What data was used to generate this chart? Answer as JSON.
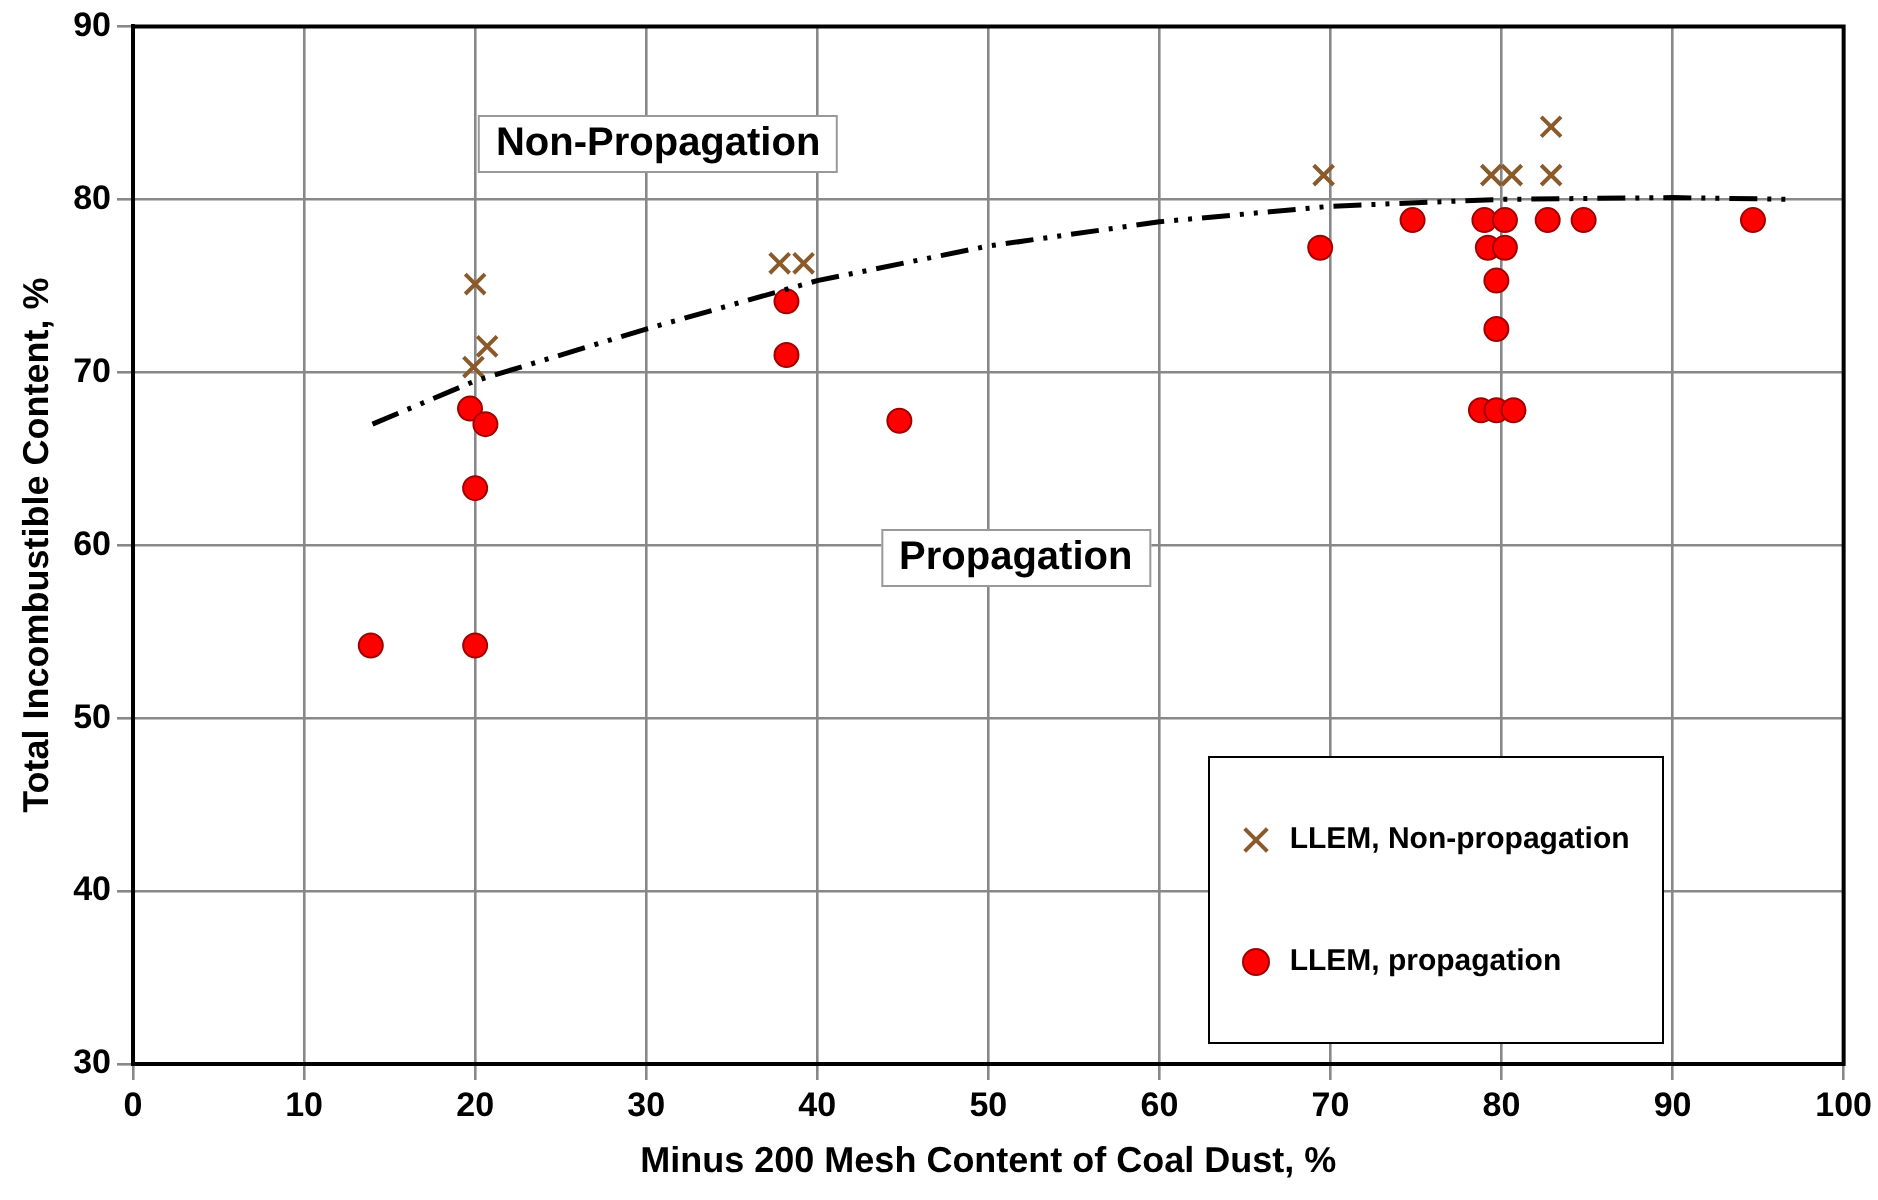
{
  "chart_data": {
    "type": "scatter",
    "xlabel": "Minus 200 Mesh Content of Coal Dust, %",
    "ylabel": "Total Incombustible Content, %",
    "xlim": [
      0,
      100
    ],
    "xticks": [
      0,
      10,
      20,
      30,
      40,
      50,
      60,
      70,
      80,
      90,
      100
    ],
    "ylim": [
      30,
      90
    ],
    "yticks": [
      30,
      40,
      50,
      60,
      70,
      80,
      90
    ],
    "grid": true,
    "legend": "bottom right",
    "annotations": [
      "Non-Propagation",
      "Propagation"
    ],
    "series": [
      {
        "type": "line",
        "color": "#000000",
        "line_style": "dashed",
        "marker": "none",
        "x": [
          14,
          20,
          30,
          40,
          50,
          60,
          70,
          80,
          90,
          97
        ],
        "values": [
          67,
          69.5,
          72.5,
          75.3,
          77.3,
          78.7,
          79.6,
          80,
          80.1,
          80
        ]
      },
      {
        "name": "LLEM, Non-propagation",
        "color": "#8b5a2b",
        "marker": "cross",
        "x": [
          20,
          20.7,
          19.9,
          37.8,
          39.2,
          69.6,
          79.4,
          80.6,
          82.9,
          82.9
        ],
        "values": [
          75.1,
          71.5,
          70.3,
          76.3,
          76.3,
          81.4,
          81.4,
          81.4,
          81.4,
          84.2
        ]
      },
      {
        "name": "LLEM, propagation",
        "color": "#ff0000",
        "marker": "circle",
        "x": [
          13.9,
          20,
          20,
          19.7,
          20.6,
          38.2,
          38.2,
          44.8,
          69.4,
          74.8,
          79,
          80.2,
          82.7,
          84.8,
          94.7,
          79.2,
          80.2,
          79.7,
          79.7,
          78.8,
          79.7,
          80.7
        ],
        "values": [
          54.2,
          54.2,
          63.3,
          67.9,
          67,
          74.1,
          71,
          67.2,
          77.2,
          78.8,
          78.8,
          78.8,
          78.8,
          78.8,
          78.8,
          77.2,
          77.2,
          75.3,
          72.5,
          67.8,
          67.8,
          67.8
        ]
      }
    ]
  }
}
